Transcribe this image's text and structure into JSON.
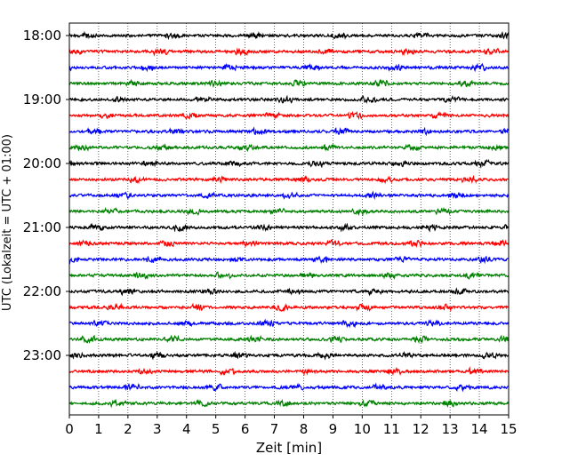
{
  "chart_data": {
    "type": "line",
    "title": "",
    "xlabel": "Zeit  [min]",
    "ylabel": "UTC (Lokalzeit = UTC + 01:00)",
    "xlim": [
      0,
      15
    ],
    "x_ticks": [
      "0",
      "1",
      "2",
      "3",
      "4",
      "5",
      "6",
      "7",
      "8",
      "9",
      "10",
      "11",
      "12",
      "13",
      "14",
      "15"
    ],
    "y_ticks": [
      "18:00",
      "19:00",
      "20:00",
      "21:00",
      "22:00",
      "23:00"
    ],
    "grid": {
      "x": true,
      "y": false
    },
    "legend": "none",
    "trace_interval_min": 15,
    "trace_colors": [
      "#000000",
      "#ff0000",
      "#0000ff",
      "#008000"
    ],
    "traces": [
      {
        "start": "18:00",
        "color": "#000000"
      },
      {
        "start": "18:15",
        "color": "#ff0000"
      },
      {
        "start": "18:30",
        "color": "#0000ff"
      },
      {
        "start": "18:45",
        "color": "#008000"
      },
      {
        "start": "19:00",
        "color": "#000000"
      },
      {
        "start": "19:15",
        "color": "#ff0000"
      },
      {
        "start": "19:30",
        "color": "#0000ff"
      },
      {
        "start": "19:45",
        "color": "#008000"
      },
      {
        "start": "20:00",
        "color": "#000000"
      },
      {
        "start": "20:15",
        "color": "#ff0000"
      },
      {
        "start": "20:30",
        "color": "#0000ff"
      },
      {
        "start": "20:45",
        "color": "#008000"
      },
      {
        "start": "21:00",
        "color": "#000000"
      },
      {
        "start": "21:15",
        "color": "#ff0000"
      },
      {
        "start": "21:30",
        "color": "#0000ff"
      },
      {
        "start": "21:45",
        "color": "#008000"
      },
      {
        "start": "22:00",
        "color": "#000000"
      },
      {
        "start": "22:15",
        "color": "#ff0000"
      },
      {
        "start": "22:30",
        "color": "#0000ff"
      },
      {
        "start": "22:45",
        "color": "#008000"
      },
      {
        "start": "23:00",
        "color": "#000000"
      },
      {
        "start": "23:15",
        "color": "#ff0000"
      },
      {
        "start": "23:30",
        "color": "#0000ff"
      },
      {
        "start": "23:45",
        "color": "#008000"
      }
    ]
  }
}
